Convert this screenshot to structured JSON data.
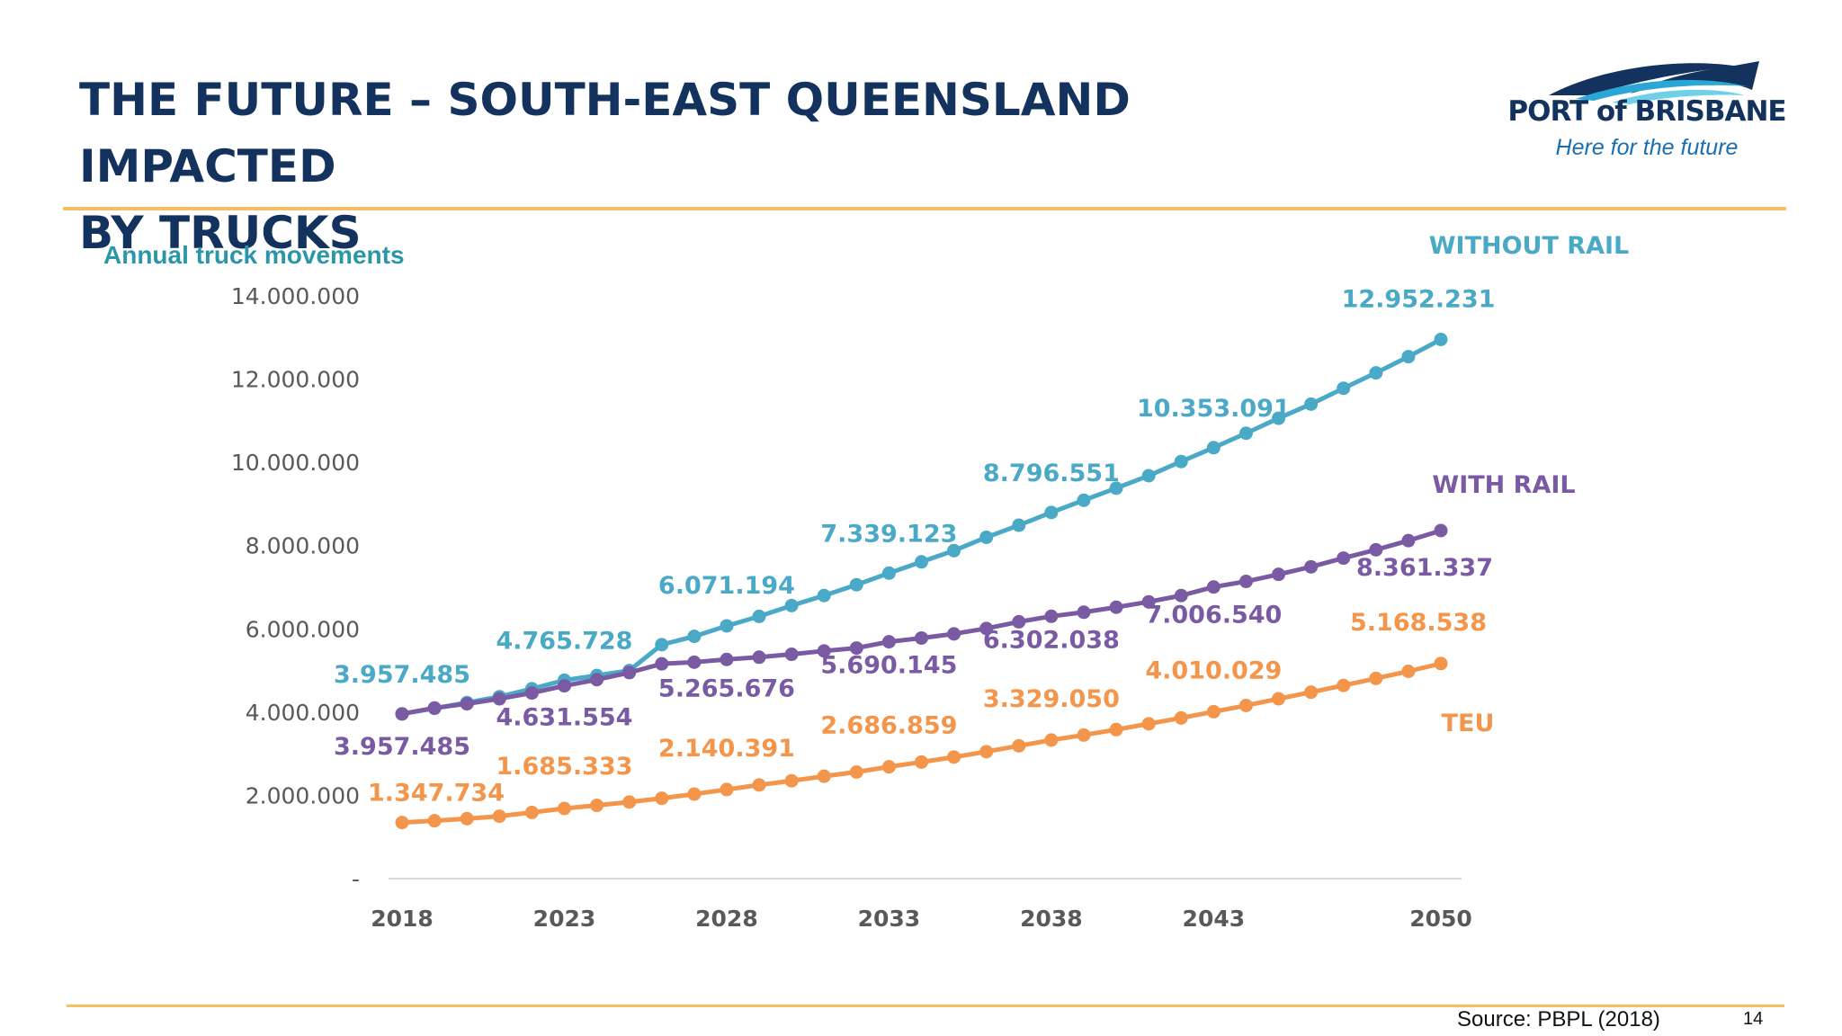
{
  "slide": {
    "title_line1": "THE FUTURE – SOUTH-EAST QUEENSLAND IMPACTED",
    "title_line2": "BY TRUCKS",
    "source": "Source: PBPL (2018)",
    "page_number": "14"
  },
  "logo": {
    "name": "PORT of BRISBANE",
    "tagline": "Here for the future"
  },
  "colors": {
    "title": "#13335e",
    "rule": "#f2c063",
    "without_rail": "#4aa9c6",
    "with_rail": "#7a5ba3",
    "teu": "#f3954a",
    "axis_text": "#595959"
  },
  "chart_data": {
    "type": "line",
    "ylabel": "Annual truck movements",
    "ylim": [
      0,
      14000000
    ],
    "yticks": [
      {
        "value": 0,
        "label": "-"
      },
      {
        "value": 2000000,
        "label": "2.000.000"
      },
      {
        "value": 4000000,
        "label": "4.000.000"
      },
      {
        "value": 6000000,
        "label": "6.000.000"
      },
      {
        "value": 8000000,
        "label": "8.000.000"
      },
      {
        "value": 10000000,
        "label": "10.000.000"
      },
      {
        "value": 12000000,
        "label": "12.000.000"
      },
      {
        "value": 14000000,
        "label": "14.000.000"
      }
    ],
    "x_start": 2018,
    "x_end": 2050,
    "xticks": [
      "2018",
      "2023",
      "2028",
      "2033",
      "2038",
      "2043",
      "2050"
    ],
    "series": [
      {
        "name": "WITHOUT RAIL",
        "color": "#4aa9c6",
        "values": [
          3957485,
          4090000,
          4230000,
          4370000,
          4560000,
          4765728,
          4880000,
          5000000,
          5620000,
          5820000,
          6071194,
          6300000,
          6560000,
          6800000,
          7060000,
          7339123,
          7610000,
          7880000,
          8200000,
          8490000,
          8796551,
          9090000,
          9380000,
          9680000,
          10020000,
          10353091,
          10700000,
          11060000,
          11400000,
          11780000,
          12150000,
          12540000,
          12952231
        ],
        "labels": [
          {
            "year": 2018,
            "value": 3957485,
            "text": "3.957.485"
          },
          {
            "year": 2023,
            "value": 4765728,
            "text": "4.765.728"
          },
          {
            "year": 2028,
            "value": 6071194,
            "text": "6.071.194"
          },
          {
            "year": 2033,
            "value": 7339123,
            "text": "7.339.123"
          },
          {
            "year": 2038,
            "value": 8796551,
            "text": "8.796.551"
          },
          {
            "year": 2043,
            "value": 10353091,
            "text": "10.353.091"
          },
          {
            "year": 2050,
            "value": 12952231,
            "text": "12.952.231"
          }
        ]
      },
      {
        "name": "WITH RAIL",
        "color": "#7a5ba3",
        "values": [
          3957485,
          4100000,
          4200000,
          4320000,
          4460000,
          4631554,
          4780000,
          4950000,
          5160000,
          5200000,
          5265676,
          5320000,
          5390000,
          5470000,
          5540000,
          5690145,
          5780000,
          5880000,
          6010000,
          6170000,
          6302038,
          6400000,
          6520000,
          6650000,
          6800000,
          7006540,
          7140000,
          7310000,
          7490000,
          7700000,
          7900000,
          8120000,
          8361337
        ],
        "labels": [
          {
            "year": 2018,
            "value": 3957485,
            "text": "3.957.485"
          },
          {
            "year": 2023,
            "value": 4631554,
            "text": "4.631.554"
          },
          {
            "year": 2028,
            "value": 5265676,
            "text": "5.265.676"
          },
          {
            "year": 2033,
            "value": 5690145,
            "text": "5.690.145"
          },
          {
            "year": 2038,
            "value": 6302038,
            "text": "6.302.038"
          },
          {
            "year": 2043,
            "value": 7006540,
            "text": "7.006.540"
          },
          {
            "year": 2050,
            "value": 8361337,
            "text": "8.361.337"
          }
        ]
      },
      {
        "name": "TEU",
        "color": "#f3954a",
        "values": [
          1347734,
          1390000,
          1440000,
          1500000,
          1590000,
          1685333,
          1760000,
          1840000,
          1930000,
          2030000,
          2140391,
          2250000,
          2350000,
          2460000,
          2560000,
          2686859,
          2800000,
          2920000,
          3050000,
          3190000,
          3329050,
          3450000,
          3580000,
          3720000,
          3860000,
          4010029,
          4160000,
          4320000,
          4480000,
          4640000,
          4810000,
          4980000,
          5168538
        ],
        "labels": [
          {
            "year": 2018,
            "value": 1347734,
            "text": "1.347.734"
          },
          {
            "year": 2023,
            "value": 1685333,
            "text": "1.685.333"
          },
          {
            "year": 2028,
            "value": 2140391,
            "text": "2.140.391"
          },
          {
            "year": 2033,
            "value": 2686859,
            "text": "2.686.859"
          },
          {
            "year": 2038,
            "value": 3329050,
            "text": "3.329.050"
          },
          {
            "year": 2043,
            "value": 4010029,
            "text": "4.010.029"
          },
          {
            "year": 2050,
            "value": 5168538,
            "text": "5.168.538"
          }
        ]
      }
    ]
  }
}
